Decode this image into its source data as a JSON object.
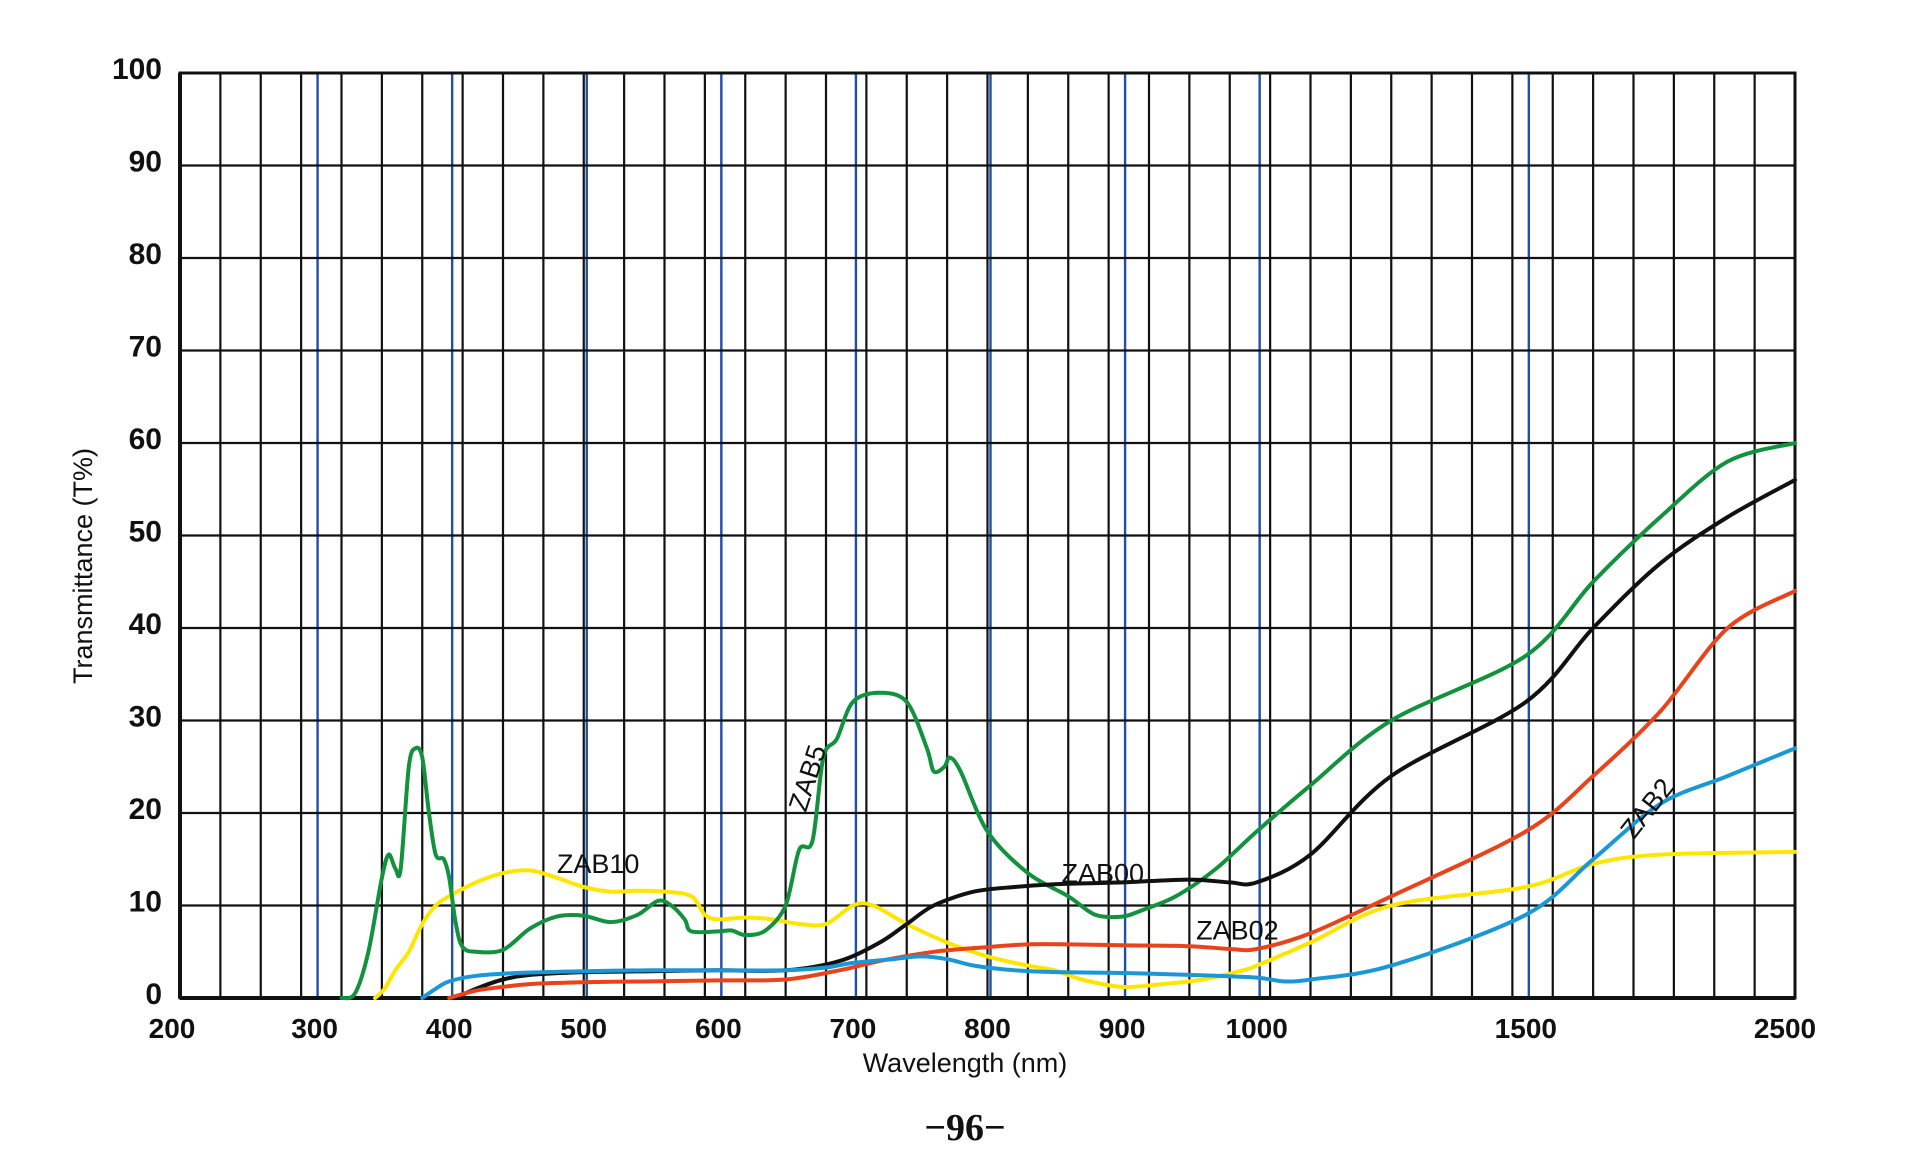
{
  "page": {
    "footer": "−96−"
  },
  "chart_data": {
    "type": "line",
    "title": "",
    "xlabel": "Wavelength (nm)",
    "ylabel": "Transmittance (T%)",
    "ylim": [
      0,
      100
    ],
    "grid": true,
    "xtick_labels": [
      "200",
      "300",
      "400",
      "500",
      "600",
      "700",
      "800",
      "900",
      "1000",
      "1500",
      "2500"
    ],
    "yticks": [
      0,
      10,
      20,
      30,
      40,
      50,
      60,
      70,
      80,
      90,
      100
    ],
    "x_axis_note": "piecewise axis: 200–1000 nm in 100 nm steps, then 1000, 1500, 2500",
    "series": [
      {
        "name": "ZAB10",
        "color": "#ffe600",
        "points": [
          [
            345,
            0
          ],
          [
            352,
            1
          ],
          [
            360,
            3
          ],
          [
            370,
            5
          ],
          [
            380,
            8
          ],
          [
            390,
            10
          ],
          [
            400,
            11
          ],
          [
            420,
            12.5
          ],
          [
            440,
            13.5
          ],
          [
            460,
            13.8
          ],
          [
            480,
            13
          ],
          [
            500,
            12
          ],
          [
            520,
            11.5
          ],
          [
            540,
            11.6
          ],
          [
            560,
            11.5
          ],
          [
            580,
            11
          ],
          [
            590,
            9
          ],
          [
            600,
            8.5
          ],
          [
            620,
            8.7
          ],
          [
            640,
            8.5
          ],
          [
            660,
            8
          ],
          [
            680,
            8
          ],
          [
            700,
            10
          ],
          [
            715,
            10
          ],
          [
            740,
            8
          ],
          [
            770,
            6
          ],
          [
            800,
            4.5
          ],
          [
            830,
            3.5
          ],
          [
            850,
            3
          ],
          [
            870,
            2
          ],
          [
            900,
            1.2
          ],
          [
            930,
            1.5
          ],
          [
            960,
            2
          ],
          [
            990,
            3
          ],
          [
            1000,
            3.5
          ],
          [
            1100,
            6
          ],
          [
            1250,
            10
          ],
          [
            1500,
            12
          ],
          [
            1750,
            14.5
          ],
          [
            2000,
            15.5
          ],
          [
            2500,
            15.8
          ]
        ]
      },
      {
        "name": "ZAB5",
        "color": "#12923c",
        "points": [
          [
            320,
            0
          ],
          [
            330,
            0.5
          ],
          [
            340,
            5
          ],
          [
            350,
            13
          ],
          [
            355,
            15.5
          ],
          [
            360,
            14
          ],
          [
            364,
            14
          ],
          [
            370,
            25
          ],
          [
            375,
            27
          ],
          [
            380,
            26
          ],
          [
            385,
            20
          ],
          [
            390,
            15.5
          ],
          [
            396,
            15
          ],
          [
            400,
            13
          ],
          [
            405,
            8
          ],
          [
            410,
            5.5
          ],
          [
            420,
            5
          ],
          [
            440,
            5.2
          ],
          [
            460,
            7.5
          ],
          [
            480,
            8.8
          ],
          [
            500,
            8.9
          ],
          [
            520,
            8.2
          ],
          [
            540,
            9
          ],
          [
            555,
            10.5
          ],
          [
            565,
            10
          ],
          [
            575,
            8.5
          ],
          [
            580,
            7.2
          ],
          [
            600,
            7.2
          ],
          [
            610,
            7.3
          ],
          [
            620,
            6.8
          ],
          [
            635,
            7.3
          ],
          [
            650,
            10
          ],
          [
            660,
            16
          ],
          [
            670,
            17
          ],
          [
            678,
            26
          ],
          [
            688,
            28
          ],
          [
            700,
            32
          ],
          [
            720,
            33
          ],
          [
            740,
            32
          ],
          [
            755,
            27
          ],
          [
            760,
            24.5
          ],
          [
            768,
            25
          ],
          [
            772,
            26
          ],
          [
            780,
            24.5
          ],
          [
            800,
            18
          ],
          [
            830,
            13.5
          ],
          [
            860,
            11
          ],
          [
            880,
            9
          ],
          [
            900,
            8.8
          ],
          [
            915,
            9.5
          ],
          [
            940,
            11
          ],
          [
            970,
            14
          ],
          [
            1000,
            18
          ],
          [
            1100,
            23
          ],
          [
            1250,
            30
          ],
          [
            1500,
            37
          ],
          [
            1750,
            45
          ],
          [
            2000,
            52
          ],
          [
            2250,
            58
          ],
          [
            2500,
            60
          ]
        ]
      },
      {
        "name": "ZAB00",
        "color": "#111111",
        "points": [
          [
            405,
            0
          ],
          [
            420,
            1
          ],
          [
            440,
            2
          ],
          [
            460,
            2.5
          ],
          [
            500,
            2.8
          ],
          [
            550,
            2.9
          ],
          [
            600,
            3
          ],
          [
            650,
            3
          ],
          [
            690,
            4
          ],
          [
            720,
            6
          ],
          [
            740,
            8
          ],
          [
            760,
            10
          ],
          [
            790,
            11.5
          ],
          [
            820,
            12
          ],
          [
            850,
            12.3
          ],
          [
            900,
            12.5
          ],
          [
            950,
            12.8
          ],
          [
            980,
            12.5
          ],
          [
            1000,
            12.5
          ],
          [
            1100,
            15.5
          ],
          [
            1250,
            24
          ],
          [
            1500,
            32
          ],
          [
            1750,
            40
          ],
          [
            2000,
            47
          ],
          [
            2250,
            52
          ],
          [
            2500,
            56
          ]
        ]
      },
      {
        "name": "ZAB02",
        "color": "#e8431b",
        "points": [
          [
            400,
            0
          ],
          [
            420,
            0.8
          ],
          [
            440,
            1.2
          ],
          [
            460,
            1.5
          ],
          [
            500,
            1.7
          ],
          [
            550,
            1.8
          ],
          [
            600,
            1.9
          ],
          [
            650,
            2
          ],
          [
            690,
            3
          ],
          [
            720,
            4
          ],
          [
            760,
            5
          ],
          [
            800,
            5.5
          ],
          [
            830,
            5.8
          ],
          [
            860,
            5.8
          ],
          [
            900,
            5.7
          ],
          [
            950,
            5.6
          ],
          [
            980,
            5.3
          ],
          [
            1000,
            5.3
          ],
          [
            1100,
            7
          ],
          [
            1250,
            11
          ],
          [
            1500,
            18
          ],
          [
            1750,
            24
          ],
          [
            2000,
            31
          ],
          [
            2250,
            40
          ],
          [
            2500,
            44
          ]
        ]
      },
      {
        "name": "ZAB2",
        "color": "#1a98d5",
        "points": [
          [
            380,
            0
          ],
          [
            390,
            1
          ],
          [
            400,
            1.8
          ],
          [
            420,
            2.4
          ],
          [
            450,
            2.7
          ],
          [
            500,
            2.9
          ],
          [
            550,
            3
          ],
          [
            600,
            3
          ],
          [
            650,
            3
          ],
          [
            680,
            3.3
          ],
          [
            700,
            3.8
          ],
          [
            730,
            4.2
          ],
          [
            750,
            4.5
          ],
          [
            770,
            4.2
          ],
          [
            790,
            3.5
          ],
          [
            820,
            3
          ],
          [
            850,
            2.8
          ],
          [
            900,
            2.7
          ],
          [
            950,
            2.5
          ],
          [
            1000,
            2.2
          ],
          [
            1050,
            1.8
          ],
          [
            1100,
            2
          ],
          [
            1250,
            3.5
          ],
          [
            1500,
            9
          ],
          [
            1750,
            15
          ],
          [
            2000,
            21
          ],
          [
            2250,
            24
          ],
          [
            2500,
            27
          ]
        ]
      }
    ],
    "annotations": [
      {
        "text": "ZAB10",
        "x": 480,
        "y": 13.5
      },
      {
        "text": "ZAB5",
        "x": 665,
        "y": 20
      },
      {
        "text": "ZAB00",
        "x": 855,
        "y": 12.5
      },
      {
        "text": "ZAB02",
        "x": 955,
        "y": 6.3
      },
      {
        "text": "ZAB2",
        "x": 1900,
        "y": 17
      }
    ]
  }
}
